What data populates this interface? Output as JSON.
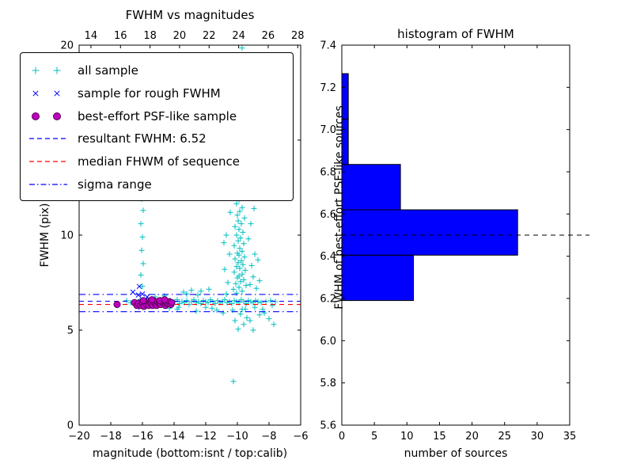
{
  "colors": {
    "cyan": "#00BFBF",
    "blue": "#0000FF",
    "magenta": "#BF00BF",
    "magenta_edge": "#550055",
    "red": "#FF0000",
    "black": "#000000",
    "hist_fill": "#0000FF"
  },
  "chart_data": [
    {
      "type": "scatter",
      "title": "FWHM vs magnitudes",
      "xlabel": "magnitude (bottom:isnt / top:calib)",
      "ylabel": "FWHM (pix)",
      "xlim": [
        -20,
        -6
      ],
      "ylim": [
        0,
        20
      ],
      "top_axis_range": [
        13.2,
        28.2
      ],
      "x_ticks": {
        "values": [
          -20,
          -18,
          -16,
          -14,
          -12,
          -10,
          -8,
          -6
        ],
        "labels": [
          "−20",
          "−18",
          "−16",
          "−14",
          "−12",
          "−10",
          "−8",
          "−6"
        ]
      },
      "x_ticks_top": {
        "values": [
          14,
          16,
          18,
          20,
          22,
          24,
          26,
          28
        ],
        "labels": [
          "14",
          "16",
          "18",
          "20",
          "22",
          "24",
          "26",
          "28"
        ]
      },
      "y_ticks": {
        "values": [
          0,
          5,
          10,
          15,
          20
        ],
        "labels": [
          "0",
          "5",
          "10",
          "15",
          "20"
        ]
      },
      "hlines": [
        {
          "name": "resultant FWHM",
          "y": 6.52,
          "style": "dashed",
          "color_key": "blue"
        },
        {
          "name": "median FHWM of sequence",
          "y": 6.35,
          "style": "dashed",
          "color_key": "red"
        },
        {
          "name": "sigma range upper",
          "y": 6.88,
          "style": "dashdot",
          "color_key": "blue"
        },
        {
          "name": "sigma range lower",
          "y": 5.97,
          "style": "dashdot",
          "color_key": "blue"
        }
      ],
      "legend": [
        {
          "label": "all sample"
        },
        {
          "label": "sample for rough FWHM"
        },
        {
          "label": "best-effort PSF-like sample"
        },
        {
          "label": "resultant FWHM: 6.52"
        },
        {
          "label": "median FHWM of sequence"
        },
        {
          "label": "sigma range"
        }
      ],
      "series": [
        {
          "name": "all sample",
          "marker": "plus",
          "color_key": "cyan",
          "points": [
            [
              -17.0,
              6.55
            ],
            [
              -16.75,
              6.45
            ],
            [
              -16.4,
              6.45
            ],
            [
              -16.15,
              6.6
            ],
            [
              -15.95,
              6.35
            ],
            [
              -15.8,
              6.5
            ],
            [
              -15.6,
              6.4
            ],
            [
              -15.45,
              6.55
            ],
            [
              -15.3,
              6.3
            ],
            [
              -15.15,
              6.5
            ],
            [
              -15.0,
              6.45
            ],
            [
              -14.85,
              6.6
            ],
            [
              -14.7,
              6.4
            ],
            [
              -14.55,
              6.5
            ],
            [
              -14.4,
              6.35
            ],
            [
              -14.25,
              6.55
            ],
            [
              -14.1,
              6.45
            ],
            [
              -13.95,
              6.5
            ],
            [
              -13.8,
              6.6
            ],
            [
              -13.65,
              6.4
            ],
            [
              -13.5,
              6.5
            ],
            [
              -13.35,
              6.45
            ],
            [
              -13.2,
              6.55
            ],
            [
              -13.05,
              6.35
            ],
            [
              -12.9,
              6.5
            ],
            [
              -12.75,
              6.6
            ],
            [
              -12.6,
              6.45
            ],
            [
              -12.45,
              6.5
            ],
            [
              -12.3,
              6.4
            ],
            [
              -12.15,
              6.55
            ],
            [
              -12.0,
              6.5
            ],
            [
              -11.85,
              6.45
            ],
            [
              -11.7,
              6.6
            ],
            [
              -11.55,
              6.5
            ],
            [
              -11.4,
              6.4
            ],
            [
              -11.25,
              6.55
            ],
            [
              -11.1,
              6.45
            ],
            [
              -10.95,
              6.5
            ],
            [
              -10.8,
              6.6
            ],
            [
              -10.65,
              6.45
            ],
            [
              -10.5,
              6.5
            ],
            [
              -10.35,
              6.4
            ],
            [
              -10.2,
              6.55
            ],
            [
              -10.05,
              6.5
            ],
            [
              -9.9,
              6.45
            ],
            [
              -9.75,
              6.6
            ],
            [
              -9.6,
              6.5
            ],
            [
              -9.45,
              6.4
            ],
            [
              -9.3,
              6.55
            ],
            [
              -9.15,
              6.5
            ],
            [
              -9.0,
              6.45
            ],
            [
              -8.85,
              6.55
            ],
            [
              -8.7,
              6.5
            ],
            [
              -8.5,
              6.45
            ],
            [
              -8.2,
              6.5
            ],
            [
              -7.9,
              6.55
            ],
            [
              -7.6,
              6.5
            ],
            [
              -14.6,
              6.8
            ],
            [
              -13.7,
              6.2
            ],
            [
              -12.5,
              6.85
            ],
            [
              -11.6,
              6.15
            ],
            [
              -10.7,
              6.9
            ],
            [
              -9.7,
              6.1
            ],
            [
              -13.2,
              6.9
            ],
            [
              -12.0,
              6.2
            ],
            [
              -15.2,
              6.75
            ],
            [
              -8.9,
              6.2
            ],
            [
              -12.9,
              7.1
            ],
            [
              -12.3,
              7.05
            ],
            [
              -11.8,
              7.15
            ],
            [
              -13.4,
              7.0
            ],
            [
              -12.6,
              6.0
            ],
            [
              -11.3,
              6.05
            ],
            [
              -13.8,
              6.1
            ],
            [
              -10.9,
              5.9
            ],
            [
              -14.3,
              6.15
            ],
            [
              -8.3,
              5.9
            ],
            [
              -8.0,
              5.6
            ],
            [
              -7.7,
              5.3
            ],
            [
              -8.6,
              5.8
            ],
            [
              -9.2,
              5.5
            ],
            [
              -9.0,
              5.0
            ],
            [
              -8.4,
              6.1
            ],
            [
              -7.8,
              6.3
            ],
            [
              -9.95,
              5.05
            ],
            [
              -9.6,
              5.3
            ],
            [
              -10.15,
              5.5
            ],
            [
              -9.4,
              5.65
            ],
            [
              -9.8,
              5.85
            ],
            [
              -10.3,
              6.05
            ],
            [
              -9.5,
              6.1
            ],
            [
              -10.05,
              6.95
            ],
            [
              -9.7,
              7.05
            ],
            [
              -10.25,
              7.15
            ],
            [
              -9.9,
              7.25
            ],
            [
              -9.45,
              7.35
            ],
            [
              -10.1,
              7.45
            ],
            [
              -9.8,
              7.55
            ],
            [
              -9.6,
              7.65
            ],
            [
              -10.0,
              7.75
            ],
            [
              -9.9,
              7.85
            ],
            [
              -9.7,
              7.95
            ],
            [
              -10.2,
              8.05
            ],
            [
              -9.5,
              8.15
            ],
            [
              -9.85,
              8.25
            ],
            [
              -10.05,
              8.35
            ],
            [
              -9.65,
              8.45
            ],
            [
              -9.95,
              8.55
            ],
            [
              -9.75,
              8.65
            ],
            [
              -10.15,
              8.75
            ],
            [
              -9.55,
              8.85
            ],
            [
              -9.9,
              8.95
            ],
            [
              -10.0,
              9.05
            ],
            [
              -9.7,
              9.15
            ],
            [
              -9.85,
              9.3
            ],
            [
              -10.2,
              9.45
            ],
            [
              -9.6,
              9.55
            ],
            [
              -9.95,
              9.7
            ],
            [
              -9.8,
              9.85
            ],
            [
              -10.05,
              10.0
            ],
            [
              -9.65,
              10.15
            ],
            [
              -9.9,
              10.3
            ],
            [
              -10.15,
              10.45
            ],
            [
              -9.75,
              10.6
            ],
            [
              -9.95,
              10.75
            ],
            [
              -9.55,
              10.9
            ],
            [
              -10.0,
              11.05
            ],
            [
              -9.85,
              11.25
            ],
            [
              -9.7,
              11.45
            ],
            [
              -10.05,
              11.65
            ],
            [
              -9.9,
              11.85
            ],
            [
              -9.6,
              12.05
            ],
            [
              -9.95,
              12.3
            ],
            [
              -9.8,
              12.55
            ],
            [
              -10.1,
              12.85
            ],
            [
              -9.7,
              13.15
            ],
            [
              -9.9,
              13.55
            ],
            [
              -10.0,
              13.95
            ],
            [
              -9.8,
              14.45
            ],
            [
              -9.95,
              14.95
            ],
            [
              -9.6,
              15.45
            ],
            [
              -9.85,
              15.95
            ],
            [
              -10.05,
              16.55
            ],
            [
              -9.75,
              17.15
            ],
            [
              -9.9,
              17.95
            ],
            [
              -9.8,
              18.75
            ],
            [
              -9.95,
              19.45
            ],
            [
              -9.7,
              19.85
            ],
            [
              -10.6,
              7.5
            ],
            [
              -10.8,
              8.2
            ],
            [
              -10.5,
              9.0
            ],
            [
              -10.7,
              10.0
            ],
            [
              -10.45,
              11.2
            ],
            [
              -10.85,
              9.6
            ],
            [
              -9.2,
              7.4
            ],
            [
              -9.0,
              7.8
            ],
            [
              -8.8,
              7.2
            ],
            [
              -8.6,
              7.6
            ],
            [
              -9.1,
              8.4
            ],
            [
              -8.9,
              9.0
            ],
            [
              -9.3,
              9.8
            ],
            [
              -8.7,
              8.7
            ],
            [
              -9.15,
              10.6
            ],
            [
              -8.95,
              11.4
            ],
            [
              -9.25,
              12.2
            ],
            [
              -10.55,
              12.6
            ],
            [
              -16.0,
              7.3
            ],
            [
              -16.1,
              7.9
            ],
            [
              -15.95,
              8.5
            ],
            [
              -16.05,
              9.2
            ],
            [
              -16.0,
              9.9
            ],
            [
              -16.1,
              10.6
            ],
            [
              -15.95,
              11.3
            ],
            [
              -16.05,
              11.9
            ],
            [
              -16.0,
              12.4
            ],
            [
              -10.25,
              2.3
            ]
          ]
        },
        {
          "name": "sample for rough FWHM",
          "marker": "x",
          "color_key": "blue",
          "points": [
            [
              -16.6,
              7.0
            ],
            [
              -16.2,
              7.3
            ],
            [
              -16.0,
              6.9
            ],
            [
              -15.8,
              6.6
            ],
            [
              -16.35,
              6.5
            ],
            [
              -15.9,
              6.3
            ],
            [
              -16.1,
              6.2
            ],
            [
              -15.6,
              6.45
            ],
            [
              -15.7,
              6.75
            ],
            [
              -15.5,
              6.55
            ],
            [
              -16.25,
              6.85
            ],
            [
              -15.45,
              6.35
            ]
          ]
        },
        {
          "name": "best-effort PSF-like sample",
          "marker": "circle",
          "color_key": "magenta",
          "edge_color_key": "magenta_edge",
          "points": [
            [
              -17.6,
              6.35
            ],
            [
              -16.5,
              6.45
            ],
            [
              -16.35,
              6.3
            ],
            [
              -16.25,
              6.4
            ],
            [
              -16.1,
              6.3
            ],
            [
              -16.0,
              6.45
            ],
            [
              -15.9,
              6.25
            ],
            [
              -15.85,
              6.5
            ],
            [
              -15.75,
              6.35
            ],
            [
              -15.65,
              6.45
            ],
            [
              -15.6,
              6.3
            ],
            [
              -15.5,
              6.5
            ],
            [
              -15.45,
              6.4
            ],
            [
              -15.35,
              6.3
            ],
            [
              -15.3,
              6.55
            ],
            [
              -15.2,
              6.4
            ],
            [
              -15.1,
              6.3
            ],
            [
              -15.05,
              6.5
            ],
            [
              -14.95,
              6.4
            ],
            [
              -14.85,
              6.35
            ],
            [
              -14.75,
              6.5
            ],
            [
              -14.65,
              6.4
            ],
            [
              -14.55,
              6.3
            ],
            [
              -14.5,
              6.45
            ],
            [
              -14.4,
              6.4
            ],
            [
              -14.3,
              6.5
            ],
            [
              -14.2,
              6.35
            ],
            [
              -14.15,
              6.45
            ],
            [
              -15.95,
              6.55
            ],
            [
              -15.4,
              6.6
            ],
            [
              -14.9,
              6.55
            ],
            [
              -14.6,
              6.6
            ]
          ]
        }
      ]
    },
    {
      "type": "bar",
      "orientation": "horizontal",
      "title": "histogram of FWHM",
      "xlabel": "number of sources",
      "ylabel": "FWHM of best-effort PSF-like sources",
      "xlim": [
        0,
        35
      ],
      "ylim": [
        5.6,
        7.4
      ],
      "x_ticks": {
        "values": [
          0,
          5,
          10,
          15,
          20,
          25,
          30,
          35
        ],
        "labels": [
          "0",
          "5",
          "10",
          "15",
          "20",
          "25",
          "30",
          "35"
        ]
      },
      "y_ticks": {
        "values": [
          5.6,
          5.8,
          6.0,
          6.2,
          6.4,
          6.6,
          6.8,
          7.0,
          7.2,
          7.4
        ],
        "labels": [
          "5.6",
          "5.8",
          "6.0",
          "6.2",
          "6.4",
          "6.6",
          "6.8",
          "7.0",
          "7.2",
          "7.4"
        ]
      },
      "bins": [
        {
          "from": 6.19,
          "to": 6.405,
          "count": 11
        },
        {
          "from": 6.405,
          "to": 6.62,
          "count": 27
        },
        {
          "from": 6.62,
          "to": 6.835,
          "count": 9
        },
        {
          "from": 6.835,
          "to": 7.05,
          "count": 1
        },
        {
          "from": 7.05,
          "to": 7.265,
          "count": 1
        }
      ],
      "median_line": {
        "y": 6.5,
        "style": "dashed",
        "color": "#000000"
      }
    }
  ]
}
